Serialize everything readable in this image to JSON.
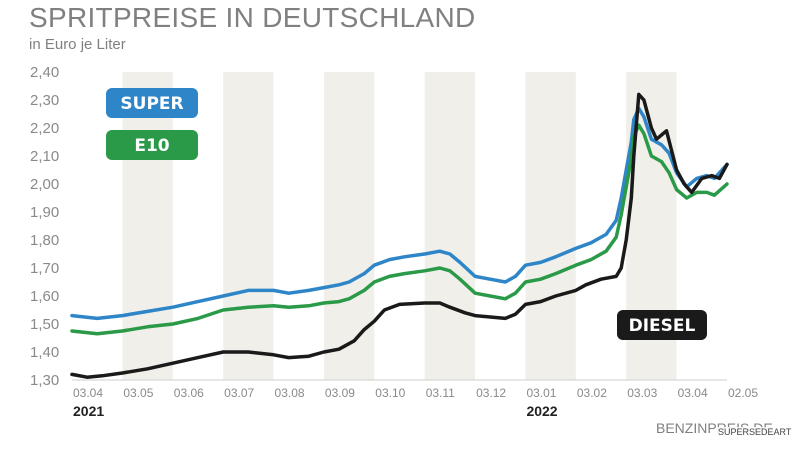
{
  "header": {
    "title": "SPRITPREISE IN DEUTSCHLAND",
    "subtitle": "in Euro je Liter"
  },
  "source": "BENZINPREIS.DE",
  "watermark": "SUPERSEDEART",
  "chart_data": {
    "type": "line",
    "title": "SPRITPREISE IN DEUTSCHLAND",
    "subtitle": "in Euro je Liter",
    "ylim": [
      1.3,
      2.4
    ],
    "ytick_labels": [
      "1,30",
      "1,40",
      "1,50",
      "1,60",
      "1,70",
      "1,80",
      "1,90",
      "2,00",
      "2,10",
      "2,20",
      "2,30",
      "2,40"
    ],
    "xlim": [
      0,
      13
    ],
    "xtick_labels": [
      "03.04",
      "03.05",
      "03.06",
      "03.07",
      "03.08",
      "03.09",
      "03.10",
      "03.11",
      "03.12",
      "03.01",
      "03.02",
      "03.03",
      "03.04",
      "02.05"
    ],
    "year_labels": [
      {
        "label": "2021",
        "x": 0
      },
      {
        "label": "2022",
        "x": 9
      }
    ],
    "grid": "alternating month bands",
    "legend": [
      {
        "name": "SUPER",
        "color": "#2e86c8",
        "placement": "top-left"
      },
      {
        "name": "E10",
        "color": "#2a9a48",
        "placement": "top-left"
      },
      {
        "name": "DIESEL",
        "color": "#1a1a1a",
        "placement": "bottom-right"
      }
    ],
    "series": [
      {
        "name": "SUPER",
        "color": "#2e86c8",
        "points": [
          [
            0,
            1.53
          ],
          [
            0.5,
            1.52
          ],
          [
            1,
            1.53
          ],
          [
            1.5,
            1.545
          ],
          [
            2,
            1.56
          ],
          [
            2.5,
            1.58
          ],
          [
            3,
            1.6
          ],
          [
            3.5,
            1.62
          ],
          [
            4,
            1.62
          ],
          [
            4.3,
            1.61
          ],
          [
            4.7,
            1.62
          ],
          [
            5,
            1.63
          ],
          [
            5.3,
            1.64
          ],
          [
            5.5,
            1.65
          ],
          [
            5.8,
            1.68
          ],
          [
            6,
            1.71
          ],
          [
            6.3,
            1.73
          ],
          [
            6.6,
            1.74
          ],
          [
            7,
            1.75
          ],
          [
            7.3,
            1.76
          ],
          [
            7.5,
            1.75
          ],
          [
            7.7,
            1.72
          ],
          [
            8,
            1.67
          ],
          [
            8.3,
            1.66
          ],
          [
            8.6,
            1.65
          ],
          [
            8.8,
            1.67
          ],
          [
            9,
            1.71
          ],
          [
            9.3,
            1.72
          ],
          [
            9.6,
            1.74
          ],
          [
            10,
            1.77
          ],
          [
            10.3,
            1.79
          ],
          [
            10.6,
            1.82
          ],
          [
            10.8,
            1.87
          ],
          [
            10.9,
            1.95
          ],
          [
            11,
            2.05
          ],
          [
            11.1,
            2.15
          ],
          [
            11.15,
            2.23
          ],
          [
            11.25,
            2.27
          ],
          [
            11.35,
            2.24
          ],
          [
            11.5,
            2.16
          ],
          [
            11.7,
            2.14
          ],
          [
            11.85,
            2.11
          ],
          [
            12,
            2.04
          ],
          [
            12.2,
            1.99
          ],
          [
            12.4,
            2.02
          ],
          [
            12.6,
            2.03
          ],
          [
            12.75,
            2.02
          ],
          [
            13,
            2.07
          ]
        ]
      },
      {
        "name": "E10",
        "color": "#2a9a48",
        "points": [
          [
            0,
            1.475
          ],
          [
            0.5,
            1.465
          ],
          [
            1,
            1.475
          ],
          [
            1.5,
            1.49
          ],
          [
            2,
            1.5
          ],
          [
            2.5,
            1.52
          ],
          [
            3,
            1.55
          ],
          [
            3.5,
            1.56
          ],
          [
            4,
            1.565
          ],
          [
            4.3,
            1.56
          ],
          [
            4.7,
            1.565
          ],
          [
            5,
            1.575
          ],
          [
            5.3,
            1.58
          ],
          [
            5.5,
            1.59
          ],
          [
            5.8,
            1.62
          ],
          [
            6,
            1.65
          ],
          [
            6.3,
            1.67
          ],
          [
            6.6,
            1.68
          ],
          [
            7,
            1.69
          ],
          [
            7.3,
            1.7
          ],
          [
            7.5,
            1.69
          ],
          [
            7.7,
            1.66
          ],
          [
            8,
            1.61
          ],
          [
            8.3,
            1.6
          ],
          [
            8.6,
            1.59
          ],
          [
            8.8,
            1.61
          ],
          [
            9,
            1.65
          ],
          [
            9.3,
            1.66
          ],
          [
            9.6,
            1.68
          ],
          [
            10,
            1.71
          ],
          [
            10.3,
            1.73
          ],
          [
            10.6,
            1.76
          ],
          [
            10.8,
            1.81
          ],
          [
            10.9,
            1.89
          ],
          [
            11,
            1.99
          ],
          [
            11.1,
            2.09
          ],
          [
            11.15,
            2.17
          ],
          [
            11.25,
            2.21
          ],
          [
            11.35,
            2.18
          ],
          [
            11.5,
            2.1
          ],
          [
            11.7,
            2.08
          ],
          [
            11.85,
            2.04
          ],
          [
            12,
            1.98
          ],
          [
            12.2,
            1.95
          ],
          [
            12.4,
            1.97
          ],
          [
            12.6,
            1.97
          ],
          [
            12.75,
            1.96
          ],
          [
            13,
            2.0
          ]
        ]
      },
      {
        "name": "DIESEL",
        "color": "#1a1a1a",
        "points": [
          [
            0,
            1.32
          ],
          [
            0.3,
            1.31
          ],
          [
            0.6,
            1.315
          ],
          [
            1,
            1.325
          ],
          [
            1.5,
            1.34
          ],
          [
            2,
            1.36
          ],
          [
            2.5,
            1.38
          ],
          [
            3,
            1.4
          ],
          [
            3.5,
            1.4
          ],
          [
            4,
            1.39
          ],
          [
            4.3,
            1.38
          ],
          [
            4.7,
            1.385
          ],
          [
            5,
            1.4
          ],
          [
            5.3,
            1.41
          ],
          [
            5.6,
            1.44
          ],
          [
            5.8,
            1.48
          ],
          [
            6,
            1.51
          ],
          [
            6.2,
            1.55
          ],
          [
            6.5,
            1.57
          ],
          [
            7,
            1.575
          ],
          [
            7.3,
            1.575
          ],
          [
            7.5,
            1.56
          ],
          [
            7.8,
            1.54
          ],
          [
            8,
            1.53
          ],
          [
            8.3,
            1.525
          ],
          [
            8.6,
            1.52
          ],
          [
            8.8,
            1.535
          ],
          [
            9,
            1.57
          ],
          [
            9.3,
            1.58
          ],
          [
            9.6,
            1.6
          ],
          [
            10,
            1.62
          ],
          [
            10.2,
            1.64
          ],
          [
            10.5,
            1.66
          ],
          [
            10.8,
            1.67
          ],
          [
            10.9,
            1.7
          ],
          [
            11,
            1.8
          ],
          [
            11.1,
            1.95
          ],
          [
            11.15,
            2.1
          ],
          [
            11.25,
            2.32
          ],
          [
            11.35,
            2.3
          ],
          [
            11.5,
            2.2
          ],
          [
            11.6,
            2.16
          ],
          [
            11.8,
            2.19
          ],
          [
            12,
            2.05
          ],
          [
            12.15,
            2.0
          ],
          [
            12.3,
            1.97
          ],
          [
            12.5,
            2.02
          ],
          [
            12.7,
            2.03
          ],
          [
            12.85,
            2.02
          ],
          [
            13,
            2.07
          ]
        ]
      }
    ]
  }
}
